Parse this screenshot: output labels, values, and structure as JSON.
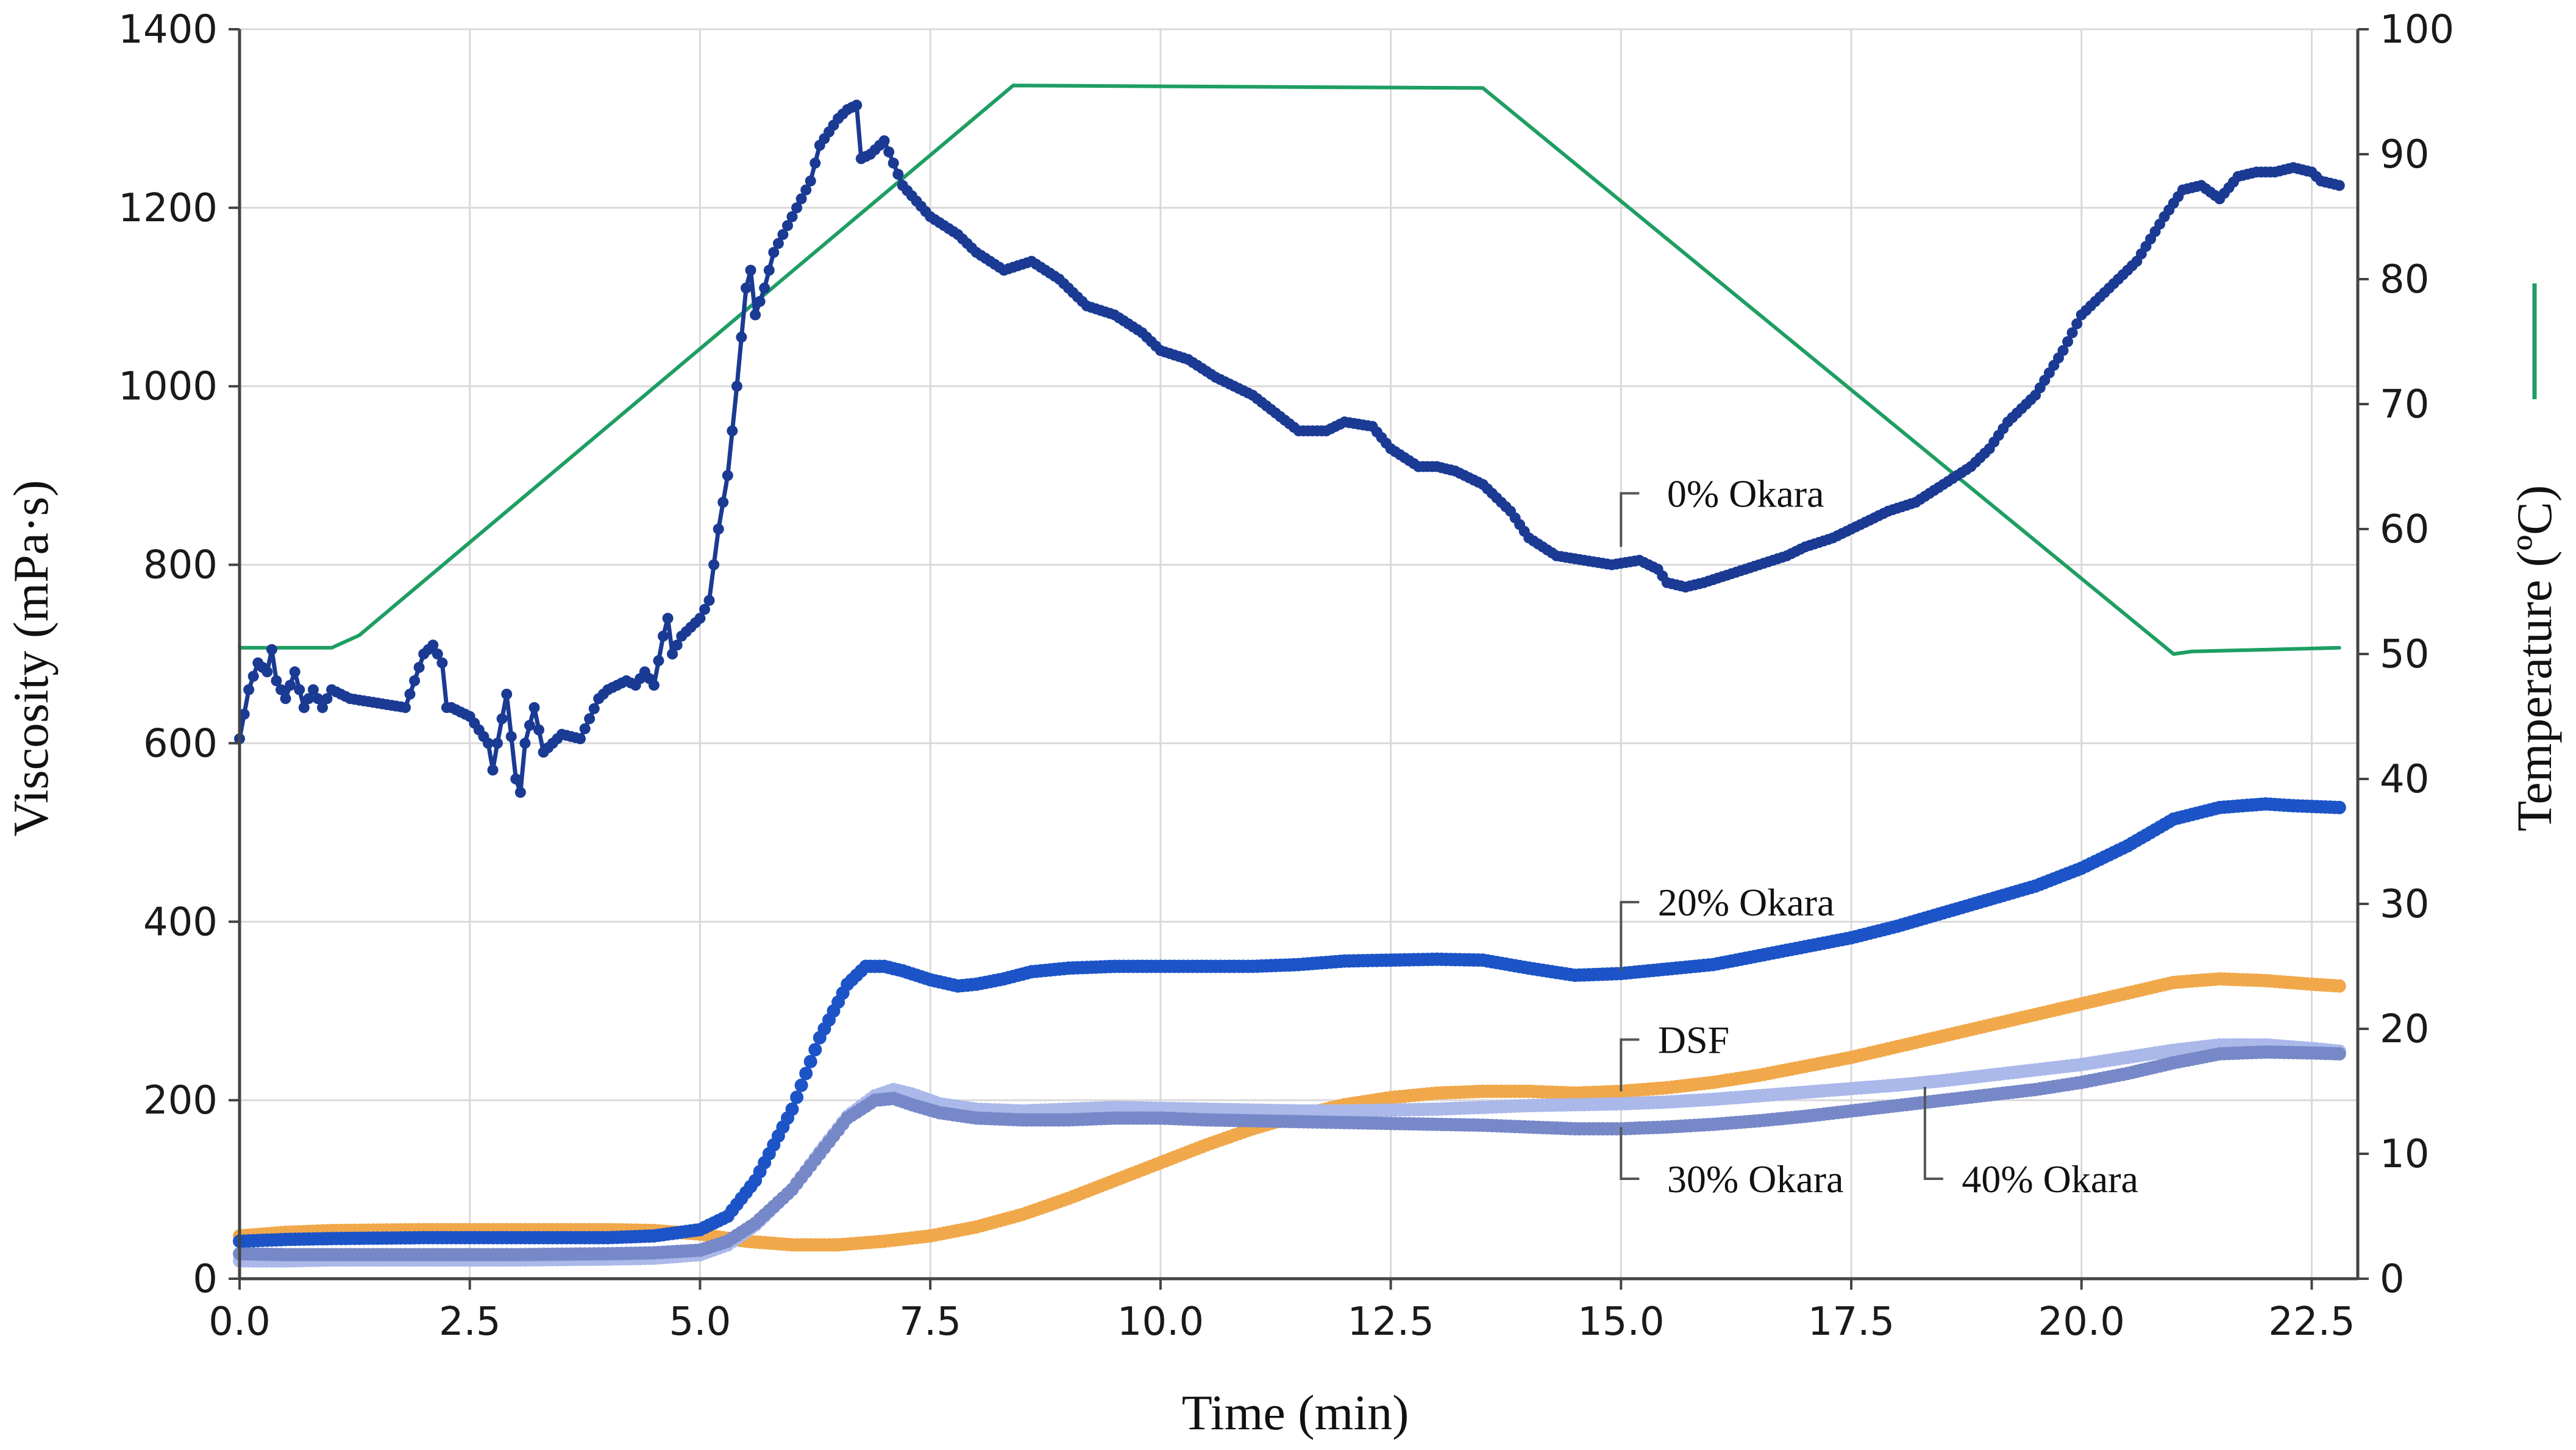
{
  "chart_data": {
    "type": "line",
    "title": "",
    "xlabel": "Time (min)",
    "ylabel": "Viscosity (mPa·s)",
    "y2label": "Temperature (ºC)",
    "xlim": [
      0,
      23
    ],
    "ylim": [
      0,
      1400
    ],
    "y2lim": [
      0,
      100
    ],
    "grid": true,
    "x_ticks": [
      0.0,
      2.5,
      5.0,
      7.5,
      10.0,
      12.5,
      15.0,
      17.5,
      20.0,
      22.5
    ],
    "x_tick_labels": [
      "0.0",
      "2.5",
      "5.0",
      "7.5",
      "10.0",
      "12.5",
      "15.0",
      "17.5",
      "20.0",
      "22.5"
    ],
    "y_ticks": [
      0,
      200,
      400,
      600,
      800,
      1000,
      1200,
      1400
    ],
    "y_tick_labels": [
      "0",
      "200",
      "400",
      "600",
      "800",
      "1000",
      "1200",
      "1400"
    ],
    "y2_ticks": [
      0,
      10,
      20,
      30,
      40,
      50,
      60,
      70,
      80,
      90,
      100
    ],
    "y2_tick_labels": [
      "0",
      "10",
      "20",
      "30",
      "40",
      "50",
      "60",
      "70",
      "80",
      "90",
      "100"
    ],
    "legend": {
      "position": "right",
      "entry_color": "#1e9e63",
      "entry_meaning": "Temperature"
    },
    "series": [
      {
        "name": "Temperature",
        "label": "",
        "axis": "y2",
        "color": "#1e9e63",
        "markers": false,
        "x": [
          0,
          1.0,
          1.3,
          8.4,
          13.5,
          21.0,
          21.2,
          22.8
        ],
        "y": [
          50.5,
          50.5,
          51.5,
          95.5,
          95.3,
          50.0,
          50.2,
          50.5
        ]
      },
      {
        "name": "0% Okara",
        "label": "0% Okara",
        "axis": "y",
        "color": "#1a3a93",
        "markers": true,
        "x": [
          0,
          0.1,
          0.2,
          0.3,
          0.35,
          0.4,
          0.5,
          0.6,
          0.7,
          0.8,
          0.9,
          1.0,
          1.2,
          1.5,
          1.8,
          2.0,
          2.1,
          2.2,
          2.25,
          2.3,
          2.5,
          2.7,
          2.75,
          2.8,
          2.9,
          3.0,
          3.05,
          3.1,
          3.2,
          3.3,
          3.4,
          3.5,
          3.7,
          3.9,
          4.0,
          4.2,
          4.3,
          4.4,
          4.5,
          4.6,
          4.65,
          4.7,
          4.8,
          4.9,
          5.0,
          5.1,
          5.15,
          5.2,
          5.3,
          5.4,
          5.5,
          5.55,
          5.6,
          5.7,
          5.8,
          6.0,
          6.2,
          6.3,
          6.5,
          6.6,
          6.7,
          6.75,
          6.85,
          7.0,
          7.2,
          7.5,
          7.8,
          8.0,
          8.3,
          8.6,
          8.9,
          9.2,
          9.5,
          9.8,
          10.0,
          10.3,
          10.6,
          11.0,
          11.5,
          11.8,
          12.0,
          12.3,
          12.5,
          12.8,
          13.0,
          13.2,
          13.5,
          13.8,
          14.0,
          14.3,
          14.6,
          14.9,
          15.2,
          15.4,
          15.5,
          15.7,
          15.9,
          16.2,
          16.5,
          16.8,
          17.0,
          17.3,
          17.6,
          17.9,
          18.2,
          18.5,
          18.8,
          19.0,
          19.2,
          19.5,
          19.8,
          20.0,
          20.3,
          20.6,
          20.9,
          21.1,
          21.3,
          21.5,
          21.7,
          21.9,
          22.1,
          22.3,
          22.5,
          22.6,
          22.8
        ],
        "y": [
          605,
          660,
          690,
          680,
          705,
          670,
          650,
          680,
          640,
          660,
          640,
          660,
          650,
          645,
          640,
          700,
          710,
          690,
          640,
          640,
          630,
          600,
          570,
          600,
          655,
          560,
          545,
          600,
          640,
          590,
          600,
          610,
          605,
          650,
          660,
          670,
          665,
          680,
          665,
          720,
          740,
          700,
          720,
          730,
          740,
          760,
          800,
          840,
          900,
          1000,
          1110,
          1130,
          1080,
          1110,
          1150,
          1190,
          1230,
          1270,
          1300,
          1310,
          1315,
          1255,
          1260,
          1275,
          1225,
          1190,
          1170,
          1150,
          1130,
          1140,
          1120,
          1090,
          1080,
          1060,
          1040,
          1030,
          1010,
          990,
          950,
          950,
          960,
          955,
          930,
          910,
          910,
          905,
          890,
          860,
          830,
          810,
          805,
          800,
          805,
          795,
          780,
          775,
          780,
          790,
          800,
          810,
          820,
          830,
          845,
          860,
          870,
          890,
          910,
          930,
          960,
          990,
          1040,
          1080,
          1110,
          1140,
          1190,
          1220,
          1225,
          1210,
          1235,
          1240,
          1240,
          1245,
          1240,
          1230,
          1225
        ],
        "label_pos": [
          16.1,
          880
        ]
      },
      {
        "name": "20% Okara",
        "label": "20% Okara",
        "axis": "y",
        "color": "#1c54c7",
        "markers": true,
        "x": [
          0,
          0.5,
          1.0,
          2.0,
          3.0,
          4.0,
          4.5,
          5.0,
          5.3,
          5.6,
          6.0,
          6.3,
          6.6,
          6.8,
          7.0,
          7.2,
          7.5,
          7.8,
          8.0,
          8.3,
          8.6,
          9.0,
          9.5,
          10.0,
          10.5,
          11.0,
          11.5,
          12.0,
          12.5,
          13.0,
          13.5,
          14.0,
          14.5,
          15.0,
          15.5,
          16.0,
          16.5,
          17.0,
          17.5,
          18.0,
          18.5,
          19.0,
          19.5,
          20.0,
          20.5,
          21.0,
          21.5,
          22.0,
          22.3,
          22.8
        ],
        "y": [
          42,
          44,
          45,
          46,
          46,
          46,
          48,
          55,
          70,
          110,
          190,
          270,
          330,
          350,
          350,
          345,
          335,
          328,
          330,
          336,
          344,
          348,
          350,
          350,
          350,
          350,
          352,
          356,
          357,
          358,
          357,
          348,
          340,
          342,
          347,
          352,
          362,
          372,
          382,
          395,
          410,
          425,
          440,
          460,
          485,
          515,
          528,
          532,
          530,
          528
        ],
        "label_pos": [
          16.1,
          422
        ]
      },
      {
        "name": "DSF",
        "label": "DSF",
        "axis": "y",
        "color": "#f1a84a",
        "markers": true,
        "x": [
          0,
          0.5,
          1.0,
          2.0,
          3.0,
          4.0,
          4.5,
          5.0,
          5.5,
          6.0,
          6.5,
          7.0,
          7.5,
          8.0,
          8.5,
          9.0,
          9.5,
          10.0,
          10.5,
          11.0,
          11.5,
          12.0,
          12.5,
          13.0,
          13.5,
          14.0,
          14.5,
          15.0,
          15.5,
          16.0,
          16.5,
          17.0,
          17.5,
          18.0,
          18.5,
          19.0,
          19.5,
          20.0,
          20.5,
          21.0,
          21.5,
          22.0,
          22.5,
          22.8
        ],
        "y": [
          48,
          52,
          54,
          55,
          55,
          55,
          54,
          50,
          42,
          38,
          38,
          42,
          48,
          58,
          72,
          90,
          110,
          130,
          150,
          168,
          183,
          195,
          203,
          208,
          210,
          210,
          208,
          210,
          214,
          220,
          228,
          238,
          248,
          260,
          272,
          284,
          296,
          308,
          320,
          332,
          336,
          334,
          330,
          328
        ],
        "label_pos": [
          16.1,
          268
        ]
      },
      {
        "name": "30% Okara",
        "label": "30% Okara",
        "axis": "y",
        "color": "#7788c8",
        "markers": true,
        "x": [
          0,
          0.5,
          1.0,
          2.0,
          3.0,
          4.0,
          4.5,
          5.0,
          5.3,
          5.6,
          6.0,
          6.3,
          6.6,
          6.9,
          7.1,
          7.3,
          7.6,
          8.0,
          8.5,
          9.0,
          9.5,
          10.0,
          10.5,
          11.0,
          11.5,
          12.0,
          12.5,
          13.0,
          13.5,
          14.0,
          14.5,
          15.0,
          15.5,
          16.0,
          16.5,
          17.0,
          17.5,
          18.0,
          18.5,
          19.0,
          19.5,
          20.0,
          20.5,
          21.0,
          21.5,
          22.0,
          22.5,
          22.8
        ],
        "y": [
          28,
          27,
          27,
          27,
          27,
          28,
          29,
          32,
          42,
          62,
          100,
          140,
          180,
          200,
          202,
          195,
          186,
          180,
          178,
          178,
          180,
          180,
          178,
          177,
          176,
          175,
          174,
          173,
          172,
          170,
          168,
          168,
          170,
          173,
          177,
          182,
          188,
          194,
          200,
          206,
          212,
          220,
          230,
          242,
          252,
          254,
          253,
          252
        ],
        "label_pos": [
          16.1,
          112
        ]
      },
      {
        "name": "40% Okara",
        "label": "40% Okara",
        "axis": "y",
        "color": "#aab8ea",
        "markers": true,
        "x": [
          0,
          0.5,
          1.0,
          2.0,
          3.0,
          4.0,
          4.5,
          5.0,
          5.3,
          5.6,
          6.0,
          6.3,
          6.6,
          6.9,
          7.1,
          7.3,
          7.6,
          8.0,
          8.5,
          9.0,
          9.5,
          10.0,
          10.5,
          11.0,
          11.5,
          12.0,
          12.5,
          13.0,
          13.5,
          14.0,
          14.5,
          15.0,
          15.5,
          16.0,
          16.5,
          17.0,
          17.5,
          18.0,
          18.5,
          19.0,
          19.5,
          20.0,
          20.5,
          21.0,
          21.5,
          22.0,
          22.5,
          22.8
        ],
        "y": [
          20,
          20,
          21,
          21,
          21,
          22,
          23,
          27,
          38,
          60,
          100,
          142,
          182,
          205,
          212,
          207,
          196,
          190,
          188,
          190,
          192,
          191,
          190,
          189,
          188,
          188,
          189,
          190,
          192,
          194,
          195,
          196,
          198,
          201,
          205,
          209,
          213,
          217,
          222,
          228,
          234,
          240,
          248,
          256,
          262,
          262,
          258,
          255
        ],
        "label_pos": [
          21.8,
          112
        ]
      }
    ]
  }
}
